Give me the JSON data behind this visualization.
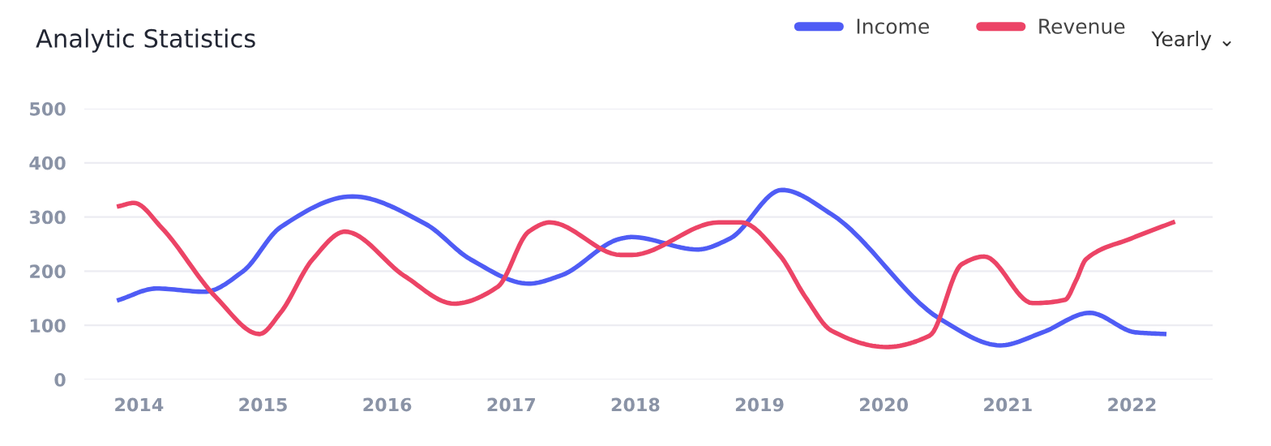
{
  "chart_data": {
    "type": "line",
    "title": "Analytic Statistics",
    "annotations": [
      "Yearly ⌄"
    ],
    "xlim": [
      2013.56,
      2022.65
    ],
    "xticks": [
      2014,
      2015,
      2016,
      2017,
      2018,
      2019,
      2020,
      2021,
      2022
    ],
    "ylim": [
      0,
      500
    ],
    "yticks": [
      0,
      100,
      200,
      300,
      400,
      500
    ],
    "grid": "y",
    "legend": "top right",
    "marker": "none",
    "line_style": "solid",
    "series": [
      {
        "name": "Income",
        "color": "#4f5cf5",
        "x": [
          2013.84,
          2014.14,
          2014.53,
          2014.84,
          2015.14,
          2015.72,
          2016.31,
          2016.67,
          2017.14,
          2017.4,
          2017.88,
          2017.97,
          2018.5,
          2018.76,
          2019.18,
          2019.58,
          2020.46,
          2020.94,
          2021.28,
          2021.66,
          2022.03,
          2022.26
        ],
        "values": [
          147,
          168,
          162,
          200,
          281,
          338,
          287,
          222,
          177,
          192,
          260,
          263,
          240,
          260,
          350,
          305,
          111,
          63,
          87,
          123,
          87,
          84
        ]
      },
      {
        "name": "Revenue",
        "color": "#ec4466",
        "x": [
          2013.84,
          2013.96,
          2014.18,
          2014.62,
          2014.97,
          2015.14,
          2015.4,
          2015.66,
          2016.14,
          2016.54,
          2016.89,
          2017.14,
          2017.31,
          2017.88,
          2017.97,
          2018.67,
          2018.85,
          2019.16,
          2019.37,
          2019.58,
          2020.02,
          2020.37,
          2020.63,
          2020.81,
          2021.2,
          2021.46,
          2021.55,
          2021.63,
          2021.99,
          2022.33
        ],
        "values": [
          320,
          326,
          281,
          152,
          84,
          123,
          222,
          273,
          191,
          140,
          171,
          273,
          290,
          230,
          230,
          290,
          290,
          230,
          152,
          90,
          60,
          81,
          213,
          227,
          141,
          147,
          183,
          222,
          260,
          290
        ]
      }
    ]
  }
}
